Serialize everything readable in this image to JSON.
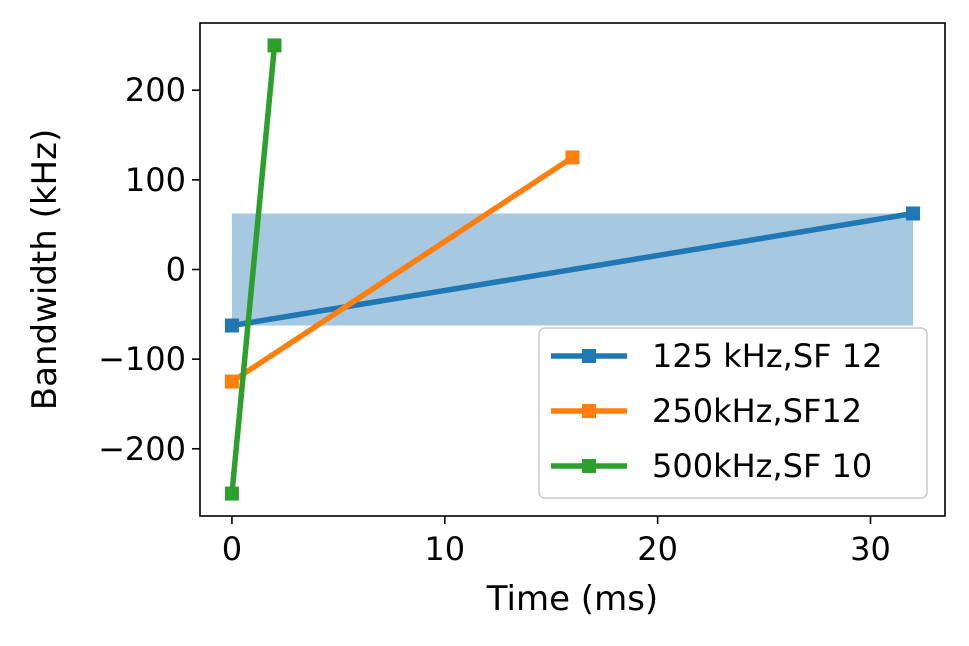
{
  "chart_data": {
    "type": "line",
    "xlabel": "Time (ms)",
    "ylabel": "Bandwidth (kHz)",
    "xlim": [
      -1.5,
      33.5
    ],
    "ylim": [
      -275,
      275
    ],
    "xticks": [
      0,
      10,
      20,
      30
    ],
    "yticks": [
      -200,
      -100,
      0,
      100,
      200
    ],
    "ytick_labels": [
      "−200",
      "−100",
      "0",
      "100",
      "200"
    ],
    "grid": false,
    "legend_position": "lower-right",
    "shaded_region": {
      "x": [
        0,
        32
      ],
      "y": [
        -62.5,
        62.5
      ],
      "color": "#a6c8e0"
    },
    "series": [
      {
        "name": "125 kHz,SF 12",
        "color": "#1f77b4",
        "marker": "square",
        "x": [
          0,
          32
        ],
        "y": [
          -62.5,
          62.5
        ]
      },
      {
        "name": "250kHz,SF12",
        "color": "#ff7f0e",
        "marker": "square",
        "x": [
          0,
          16
        ],
        "y": [
          -125,
          125
        ]
      },
      {
        "name": "500kHz,SF 10",
        "color": "#2ca02c",
        "marker": "square",
        "x": [
          0,
          2
        ],
        "y": [
          -250,
          250
        ]
      }
    ]
  }
}
